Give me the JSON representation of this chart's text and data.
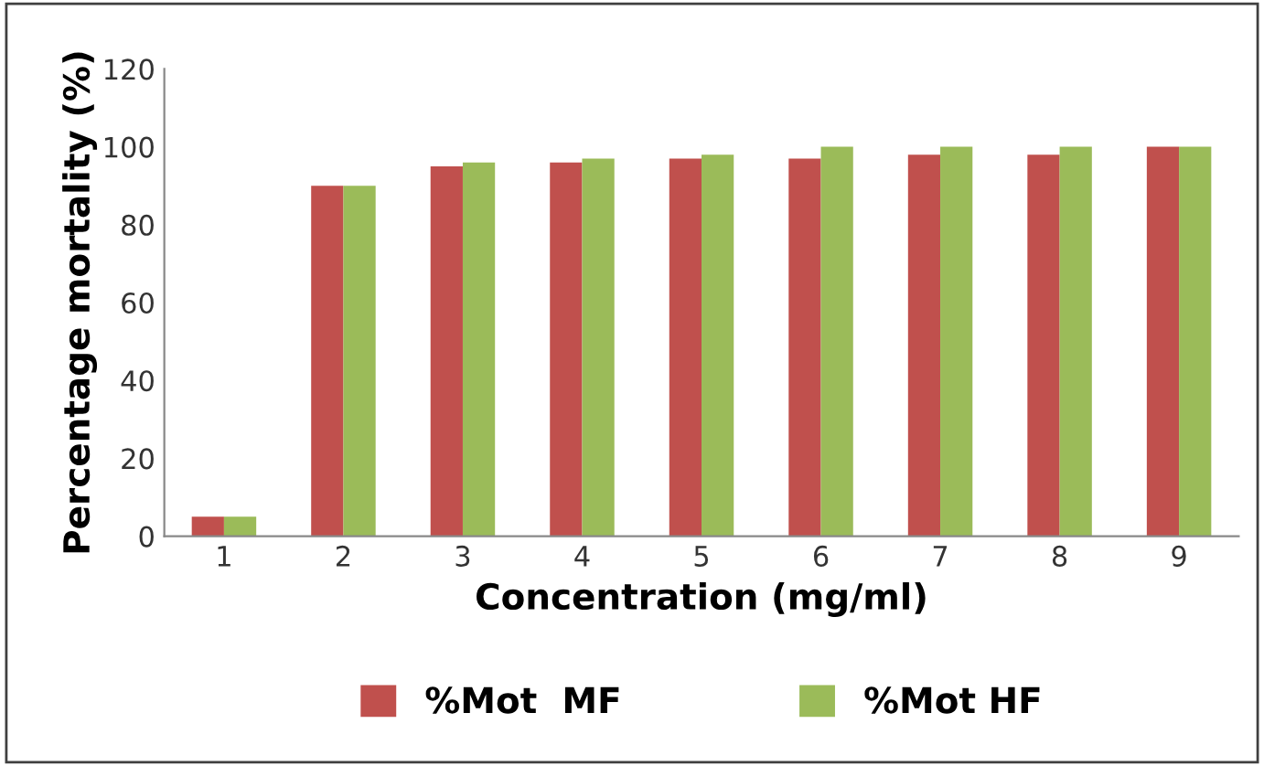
{
  "chart_data": {
    "type": "bar",
    "xlabel": "Concentration (mg/ml)",
    "ylabel": "Percentage mortality (%)",
    "categories": [
      "1",
      "2",
      "3",
      "4",
      "5",
      "6",
      "7",
      "8",
      "9"
    ],
    "series": [
      {
        "name": "%Mot  MF",
        "color": "#c0504d",
        "values": [
          5,
          90,
          95,
          96,
          97,
          97,
          98,
          98,
          100
        ]
      },
      {
        "name": "%Mot HF",
        "color": "#9bbb59",
        "values": [
          5,
          90,
          96,
          97,
          98,
          100,
          100,
          100,
          100
        ]
      }
    ],
    "ylim": [
      0,
      120
    ],
    "yticks": [
      0,
      20,
      40,
      60,
      80,
      100,
      120
    ],
    "grid": false,
    "legend": "bottom"
  }
}
